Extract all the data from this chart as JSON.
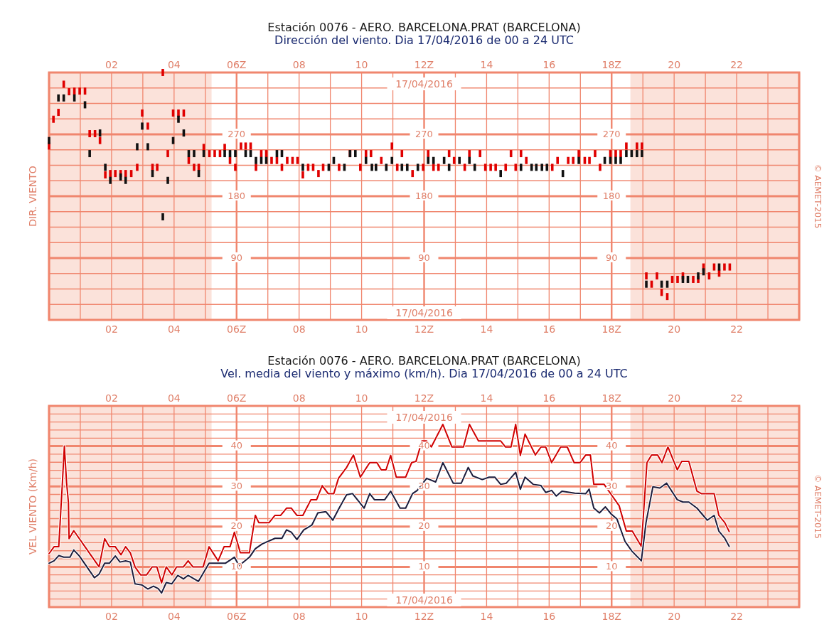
{
  "chart_data": [
    {
      "type": "scatter",
      "title": "Estación 0076 - AERO. BARCELONA.PRAT (BARCELONA)",
      "subtitle": "Dirección del viento. Dia 17/04/2016 de 00 a 24 UTC",
      "ylabel": "DIR. VIENTO",
      "annotations": [
        "17/04/2016",
        "17/04/2016",
        "© AEMET-2015"
      ],
      "xlim": [
        0,
        24
      ],
      "x2lim": [
        0,
        24
      ],
      "xticks": [
        {
          "value": 0,
          "label": null
        },
        {
          "value": 1,
          "label": null
        },
        {
          "value": 2,
          "label": "02"
        },
        {
          "value": 3,
          "label": null
        },
        {
          "value": 4,
          "label": "04"
        },
        {
          "value": 5,
          "label": null
        },
        {
          "value": 6,
          "label": "06Z"
        },
        {
          "value": 7,
          "label": null
        },
        {
          "value": 8,
          "label": "08"
        },
        {
          "value": 9,
          "label": null
        },
        {
          "value": 10,
          "label": "10"
        },
        {
          "value": 11,
          "label": null
        },
        {
          "value": 12,
          "label": "12Z"
        },
        {
          "value": 13,
          "label": null
        },
        {
          "value": 14,
          "label": "14"
        },
        {
          "value": 15,
          "label": null
        },
        {
          "value": 16,
          "label": "16"
        },
        {
          "value": 17,
          "label": null
        },
        {
          "value": 18,
          "label": "18Z"
        },
        {
          "value": 19,
          "label": null
        },
        {
          "value": 20,
          "label": "20"
        },
        {
          "value": 21,
          "label": null
        },
        {
          "value": 22,
          "label": "22"
        },
        {
          "value": 23,
          "label": null
        },
        {
          "value": 24,
          "label": null
        }
      ],
      "x2ticks": [
        {
          "value": 2,
          "label": "02"
        },
        {
          "value": 4,
          "label": "04"
        },
        {
          "value": 6,
          "label": "06Z"
        },
        {
          "value": 8,
          "label": "08"
        },
        {
          "value": 10,
          "label": "10"
        },
        {
          "value": 12,
          "label": "12Z"
        },
        {
          "value": 14,
          "label": "14"
        },
        {
          "value": 16,
          "label": "16"
        },
        {
          "value": 18,
          "label": "18Z"
        },
        {
          "value": 20,
          "label": "20"
        },
        {
          "value": 22,
          "label": "22"
        }
      ],
      "ylim": [
        0,
        360
      ],
      "yticks": [
        {
          "value": 0,
          "label": null
        },
        {
          "value": 22.5,
          "label": null
        },
        {
          "value": 45,
          "label": null
        },
        {
          "value": 67.5,
          "label": null
        },
        90,
        {
          "value": 112.5,
          "label": null
        },
        {
          "value": 135,
          "label": null
        },
        {
          "value": 157.5,
          "label": null
        },
        180,
        {
          "value": 202.5,
          "label": null
        },
        {
          "value": 225,
          "label": null
        },
        {
          "value": 247.5,
          "label": null
        },
        270,
        {
          "value": 292.5,
          "label": null
        },
        {
          "value": 315,
          "label": null
        },
        {
          "value": 337.5,
          "label": null
        },
        {
          "value": 360,
          "label": null
        }
      ],
      "y2lim": [
        0,
        360
      ],
      "y2ticks": [
        90,
        180,
        270
      ],
      "y3lim": [
        0,
        360
      ],
      "y3ticks": [
        90,
        180,
        270
      ],
      "grid": true,
      "bands": [
        {
          "axis": "x",
          "from": 0,
          "to": 5.2,
          "color": "#fbe2da"
        },
        {
          "axis": "x",
          "from": 18.6,
          "to": 24,
          "color": "#fbe2da"
        }
      ],
      "series": [
        {
          "color": "#e00000",
          "x": [
            0.0,
            0.14,
            0.3,
            0.47,
            0.64,
            0.81,
            0.98,
            1.15,
            1.3,
            1.47,
            1.63,
            1.8,
            1.96,
            2.12,
            2.29,
            2.45,
            2.63,
            2.82,
            2.98,
            3.16,
            3.31,
            3.46,
            3.64,
            3.8,
            3.97,
            4.14,
            4.31,
            4.47,
            4.64,
            4.79,
            4.95,
            5.13,
            5.3,
            5.47,
            5.62,
            5.79,
            5.96,
            6.14,
            6.29,
            6.45,
            6.62,
            6.79,
            6.95,
            7.12,
            7.29,
            7.45,
            7.62,
            7.79,
            7.95,
            8.12,
            8.29,
            8.45,
            8.62,
            8.77,
            9.28,
            9.63,
            9.96,
            10.14,
            10.3,
            10.63,
            10.97,
            11.14,
            11.29,
            11.63,
            11.97,
            12.13,
            12.3,
            12.46,
            12.8,
            12.96,
            13.3,
            13.45,
            13.79,
            13.96,
            14.13,
            14.29,
            14.61,
            14.78,
            14.93,
            15.1,
            15.27,
            16.1,
            16.27,
            16.61,
            16.77,
            16.95,
            17.14,
            17.29,
            17.47,
            17.63,
            17.96,
            18.13,
            18.29,
            18.47,
            18.81,
            18.97,
            19.11,
            19.28,
            19.45,
            19.6,
            19.78,
            19.94,
            20.11,
            20.28,
            20.61,
            20.77,
            20.94,
            21.12,
            21.28,
            21.44,
            21.61,
            21.78
          ],
          "values": [
            253,
            292,
            302,
            343,
            332,
            333,
            333,
            333,
            271,
            271,
            261,
            211,
            213,
            213,
            213,
            213,
            213,
            222,
            301,
            282,
            222,
            222,
            360,
            242,
            301,
            301,
            301,
            232,
            222,
            222,
            251,
            242,
            242,
            242,
            251,
            232,
            222,
            253,
            253,
            253,
            222,
            242,
            242,
            232,
            232,
            222,
            232,
            232,
            232,
            211,
            222,
            222,
            213,
            222,
            222,
            242,
            222,
            242,
            242,
            232,
            253,
            222,
            242,
            213,
            222,
            242,
            222,
            222,
            242,
            232,
            222,
            242,
            242,
            222,
            222,
            222,
            222,
            242,
            222,
            242,
            232,
            222,
            232,
            232,
            232,
            242,
            232,
            232,
            242,
            222,
            242,
            242,
            242,
            253,
            253,
            253,
            64,
            52,
            64,
            40,
            34,
            59,
            59,
            64,
            59,
            59,
            77,
            64,
            77,
            68,
            77,
            77
          ]
        },
        {
          "color": "#111111",
          "x": [
            0.0,
            0.3,
            0.47,
            0.81,
            1.15,
            1.3,
            1.63,
            1.8,
            1.96,
            2.29,
            2.45,
            2.82,
            2.98,
            3.16,
            3.31,
            3.64,
            3.8,
            3.97,
            4.14,
            4.31,
            4.47,
            4.64,
            4.79,
            4.95,
            5.62,
            5.79,
            5.96,
            6.29,
            6.45,
            6.62,
            6.79,
            6.95,
            7.29,
            7.45,
            8.12,
            8.95,
            9.11,
            9.45,
            9.63,
            9.8,
            10.14,
            10.33,
            10.46,
            10.79,
            10.97,
            11.29,
            11.46,
            11.8,
            12.13,
            12.3,
            12.64,
            12.8,
            13.13,
            13.45,
            13.62,
            14.45,
            15.1,
            15.44,
            15.59,
            15.77,
            15.93,
            16.44,
            16.95,
            17.78,
            17.96,
            18.13,
            18.29,
            18.47,
            18.64,
            18.81,
            18.97,
            19.11,
            19.6,
            19.78,
            20.28,
            20.44,
            20.77,
            20.94,
            21.44
          ],
          "values": [
            261,
            323,
            323,
            323,
            313,
            242,
            272,
            222,
            203,
            208,
            203,
            252,
            282,
            252,
            213,
            150,
            203,
            261,
            292,
            272,
            242,
            242,
            213,
            242,
            242,
            242,
            242,
            242,
            242,
            232,
            232,
            232,
            242,
            242,
            222,
            222,
            232,
            222,
            242,
            242,
            232,
            222,
            222,
            222,
            232,
            222,
            222,
            222,
            232,
            232,
            232,
            222,
            232,
            232,
            222,
            213,
            222,
            222,
            222,
            222,
            222,
            213,
            232,
            232,
            232,
            232,
            232,
            242,
            242,
            242,
            242,
            52,
            52,
            52,
            59,
            59,
            64,
            70,
            77
          ]
        }
      ]
    },
    {
      "type": "line",
      "title": "Estación 0076 - AERO. BARCELONA.PRAT (BARCELONA)",
      "subtitle": "Vel. media del viento y máximo (km/h). Dia 17/04/2016 de 00 a 24 UTC",
      "ylabel": "VEL VIENTO (Km/h)",
      "annotations": [
        "17/04/2016",
        "17/04/2016",
        "© AEMET-2015"
      ],
      "xlim": [
        0,
        24
      ],
      "x2lim": [
        0,
        24
      ],
      "xticks": [
        {
          "value": 0,
          "label": null
        },
        {
          "value": 1,
          "label": null
        },
        {
          "value": 2,
          "label": "02"
        },
        {
          "value": 3,
          "label": null
        },
        {
          "value": 4,
          "label": "04"
        },
        {
          "value": 5,
          "label": null
        },
        {
          "value": 6,
          "label": "06Z"
        },
        {
          "value": 7,
          "label": null
        },
        {
          "value": 8,
          "label": "08"
        },
        {
          "value": 9,
          "label": null
        },
        {
          "value": 10,
          "label": "10"
        },
        {
          "value": 11,
          "label": null
        },
        {
          "value": 12,
          "label": "12Z"
        },
        {
          "value": 13,
          "label": null
        },
        {
          "value": 14,
          "label": "14"
        },
        {
          "value": 15,
          "label": null
        },
        {
          "value": 16,
          "label": "16"
        },
        {
          "value": 17,
          "label": null
        },
        {
          "value": 18,
          "label": "18Z"
        },
        {
          "value": 19,
          "label": null
        },
        {
          "value": 20,
          "label": "20"
        },
        {
          "value": 21,
          "label": null
        },
        {
          "value": 22,
          "label": "22"
        },
        {
          "value": 23,
          "label": null
        },
        {
          "value": 24,
          "label": null
        }
      ],
      "x2ticks": [
        {
          "value": 2,
          "label": "02"
        },
        {
          "value": 4,
          "label": "04"
        },
        {
          "value": 6,
          "label": "06Z"
        },
        {
          "value": 8,
          "label": "08"
        },
        {
          "value": 10,
          "label": "10"
        },
        {
          "value": 12,
          "label": "12Z"
        },
        {
          "value": 14,
          "label": "14"
        },
        {
          "value": 16,
          "label": "16"
        },
        {
          "value": 18,
          "label": "18Z"
        },
        {
          "value": 20,
          "label": "20"
        },
        {
          "value": 22,
          "label": "22"
        }
      ],
      "ylim": [
        0,
        50
      ],
      "yticks": [
        {
          "value": 0,
          "label": null
        },
        {
          "value": 2,
          "label": null
        },
        {
          "value": 4,
          "label": null
        },
        {
          "value": 6,
          "label": null
        },
        {
          "value": 8,
          "label": null
        },
        10,
        {
          "value": 12,
          "label": null
        },
        {
          "value": 14,
          "label": null
        },
        {
          "value": 16,
          "label": null
        },
        {
          "value": 18,
          "label": null
        },
        20,
        {
          "value": 22,
          "label": null
        },
        {
          "value": 24,
          "label": null
        },
        {
          "value": 26,
          "label": null
        },
        {
          "value": 28,
          "label": null
        },
        30,
        {
          "value": 32,
          "label": null
        },
        {
          "value": 34,
          "label": null
        },
        {
          "value": 36,
          "label": null
        },
        {
          "value": 38,
          "label": null
        },
        40,
        {
          "value": 42,
          "label": null
        },
        {
          "value": 44,
          "label": null
        },
        {
          "value": 46,
          "label": null
        },
        {
          "value": 48,
          "label": null
        },
        {
          "value": 50,
          "label": null
        }
      ],
      "y2lim": [
        0,
        50
      ],
      "y2ticks": [
        10,
        20,
        30,
        40
      ],
      "y3lim": [
        0,
        50
      ],
      "y3ticks": [
        10,
        20,
        30,
        40
      ],
      "grid": true,
      "line_style": "solid",
      "bands": [
        {
          "axis": "x",
          "from": 0,
          "to": 5.2,
          "color": "#fbe2da"
        },
        {
          "axis": "x",
          "from": 18.6,
          "to": 24,
          "color": "#fbe2da"
        }
      ],
      "series": [
        {
          "color": "#d00000",
          "x": [
            0,
            0.16,
            0.31,
            0.42,
            0.49,
            0.56,
            0.62,
            0.64,
            0.79,
            0.97,
            1.6,
            1.78,
            1.93,
            2.12,
            2.3,
            2.45,
            2.6,
            2.75,
            2.93,
            3.12,
            3.3,
            3.45,
            3.6,
            3.75,
            3.93,
            4.08,
            4.3,
            4.45,
            4.6,
            4.93,
            5.12,
            5.41,
            5.6,
            5.79,
            5.93,
            6.12,
            6.41,
            6.6,
            6.71,
            7.04,
            7.23,
            7.41,
            7.6,
            7.75,
            7.93,
            8.12,
            8.38,
            8.56,
            8.74,
            8.93,
            9.11,
            9.26,
            9.52,
            9.74,
            9.96,
            10.26,
            10.49,
            10.63,
            10.78,
            10.93,
            11.11,
            11.41,
            11.6,
            11.74,
            11.93,
            12.08,
            12.23,
            12.6,
            12.89,
            13.26,
            13.45,
            13.74,
            14.45,
            14.6,
            14.78,
            14.93,
            15.08,
            15.23,
            15.56,
            15.74,
            15.89,
            16.08,
            16.37,
            16.58,
            16.8,
            16.99,
            17.17,
            17.32,
            17.43,
            17.76,
            18.02,
            18.24,
            18.47,
            18.66,
            18.95,
            19.13,
            19.28,
            19.47,
            19.61,
            19.8,
            20.1,
            20.24,
            20.47,
            20.73,
            20.87,
            21.28,
            21.43,
            21.62,
            21.76
          ],
          "values": [
            13.3,
            15,
            15,
            30,
            40,
            31,
            26,
            17,
            19,
            17,
            10,
            17,
            15,
            15,
            13,
            15,
            13.5,
            10,
            8,
            8,
            10,
            10,
            6,
            10,
            8,
            10,
            10,
            11.5,
            10,
            10,
            15,
            11.5,
            15,
            15,
            18.6,
            13.5,
            13.5,
            22.8,
            21,
            21,
            22.8,
            22.8,
            24.6,
            24.6,
            22.8,
            22.8,
            26.7,
            26.7,
            30.2,
            28.2,
            28.2,
            32,
            34.7,
            37.8,
            32.3,
            35.9,
            35.9,
            34.1,
            34.1,
            37.7,
            32.3,
            32.3,
            35.9,
            36.2,
            41.3,
            41.3,
            39.8,
            45.4,
            39.8,
            39.8,
            45.4,
            41.3,
            41.3,
            39.8,
            39.8,
            45.4,
            37.7,
            43,
            37.8,
            39.8,
            39.8,
            35.9,
            39.8,
            39.8,
            35.9,
            35.9,
            37.8,
            37.8,
            30.5,
            30.5,
            27.6,
            25.2,
            18.9,
            18.9,
            15.1,
            35.9,
            37.8,
            37.8,
            35.9,
            39.8,
            34.1,
            36.2,
            36.2,
            28.8,
            28.2,
            28.2,
            22.8,
            21,
            18.8
          ]
        },
        {
          "color": "#1c1c3c",
          "x": [
            0,
            0.16,
            0.31,
            0.47,
            0.67,
            0.79,
            0.97,
            1.45,
            1.6,
            1.78,
            1.93,
            2.12,
            2.27,
            2.45,
            2.6,
            2.75,
            2.97,
            3.16,
            3.34,
            3.49,
            3.6,
            3.75,
            3.93,
            4.12,
            4.3,
            4.45,
            4.78,
            5.12,
            5.64,
            5.93,
            6.08,
            6.41,
            6.6,
            6.82,
            7.23,
            7.45,
            7.6,
            7.75,
            7.93,
            8.15,
            8.41,
            8.6,
            8.86,
            9.08,
            9.26,
            9.52,
            9.71,
            10.08,
            10.26,
            10.41,
            10.74,
            10.93,
            11.23,
            11.41,
            11.63,
            11.78,
            12.08,
            12.37,
            12.6,
            12.93,
            13.19,
            13.41,
            13.56,
            13.86,
            14.08,
            14.26,
            14.45,
            14.63,
            14.93,
            15.08,
            15.23,
            15.49,
            15.74,
            15.89,
            16.08,
            16.23,
            16.41,
            16.82,
            17.17,
            17.28,
            17.43,
            17.61,
            17.8,
            17.99,
            18.17,
            18.43,
            18.65,
            18.95,
            19.1,
            19.32,
            19.54,
            19.76,
            20.1,
            20.28,
            20.47,
            20.73,
            21.06,
            21.28,
            21.43,
            21.62,
            21.76
          ],
          "values": [
            10.9,
            11.5,
            12.8,
            12.4,
            12.4,
            14.2,
            12.7,
            7.3,
            8.2,
            10.9,
            10.9,
            12.7,
            11.2,
            11.5,
            11.2,
            5.8,
            5.5,
            4.5,
            5.2,
            4.6,
            3.5,
            6.1,
            5.8,
            7.9,
            7,
            7.9,
            6.4,
            10.9,
            10.9,
            12.4,
            10.3,
            12.4,
            14.5,
            15.7,
            17.1,
            17.1,
            19.2,
            18.6,
            16.8,
            19.2,
            20.4,
            23.4,
            23.7,
            21.6,
            24.3,
            27.9,
            28.2,
            24.6,
            28.2,
            26.7,
            26.7,
            28.8,
            24.6,
            24.6,
            28.2,
            29,
            32,
            31.1,
            35.9,
            30.8,
            30.8,
            34.7,
            32.6,
            31.7,
            32.3,
            32.3,
            30.5,
            30.8,
            33.5,
            29.3,
            32.3,
            30.5,
            30.2,
            28.5,
            29,
            27.6,
            28.8,
            28.3,
            28.2,
            29.3,
            24.6,
            23.4,
            24.9,
            23.1,
            21.9,
            16.3,
            13.9,
            11.5,
            21,
            29.9,
            29.6,
            30.8,
            26.7,
            26.1,
            26.1,
            24.6,
            21.6,
            22.8,
            18.9,
            17.1,
            15.1
          ]
        }
      ]
    }
  ]
}
